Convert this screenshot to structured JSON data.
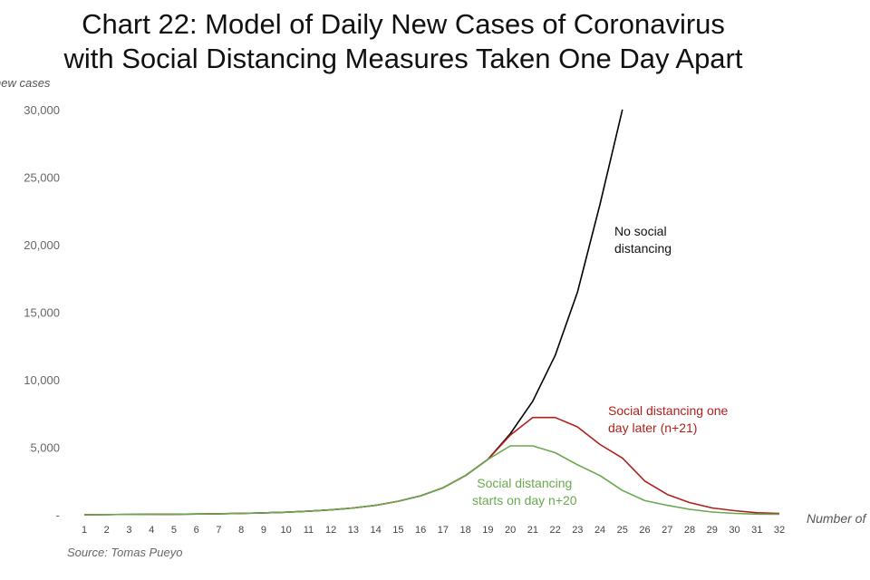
{
  "chart_data": {
    "type": "line",
    "title": [
      "Chart 22: Model of Daily New Cases of Coronavirus",
      "with Social Distancing Measures Taken One Day Apart"
    ],
    "ylabel": "new cases",
    "xlabel": "Number of",
    "source": "Source: Tomas Pueyo",
    "ylim": [
      0,
      30000
    ],
    "y_ticks": [
      {
        "value": 0,
        "label": "-"
      },
      {
        "value": 5000,
        "label": "5,000"
      },
      {
        "value": 10000,
        "label": "10,000"
      },
      {
        "value": 15000,
        "label": "15,000"
      },
      {
        "value": 20000,
        "label": "20,000"
      },
      {
        "value": 25000,
        "label": "25,000"
      },
      {
        "value": 30000,
        "label": "30,000"
      }
    ],
    "x": [
      1,
      2,
      3,
      4,
      5,
      6,
      7,
      8,
      9,
      10,
      11,
      12,
      13,
      14,
      15,
      16,
      17,
      18,
      19,
      20,
      21,
      22,
      23,
      24,
      25,
      26,
      27,
      28,
      29,
      30,
      31,
      32
    ],
    "series": [
      {
        "color": "#000000",
        "annotation": [
          "No social",
          "distancing"
        ],
        "x": [
          1,
          2,
          3,
          4,
          5,
          6,
          7,
          8,
          9,
          10,
          11,
          12,
          13,
          14,
          15,
          16,
          17,
          18,
          19,
          20,
          21,
          22,
          23,
          24,
          25
        ],
        "values": [
          10,
          15,
          20,
          30,
          40,
          55,
          75,
          100,
          140,
          190,
          260,
          360,
          500,
          700,
          1000,
          1400,
          2000,
          2900,
          4100,
          6000,
          8400,
          11800,
          16500,
          23000,
          30000
        ]
      },
      {
        "color": "#b0201b",
        "annotation": [
          "Social distancing one",
          "day later (n+21)"
        ],
        "x": [
          1,
          2,
          3,
          4,
          5,
          6,
          7,
          8,
          9,
          10,
          11,
          12,
          13,
          14,
          15,
          16,
          17,
          18,
          19,
          20,
          21,
          22,
          23,
          24,
          25,
          26,
          27,
          28,
          29,
          30,
          31,
          32
        ],
        "values": [
          10,
          15,
          20,
          30,
          40,
          55,
          75,
          100,
          140,
          190,
          260,
          360,
          500,
          700,
          1000,
          1400,
          2000,
          2900,
          4100,
          5900,
          7200,
          7200,
          6500,
          5200,
          4200,
          2500,
          1500,
          900,
          500,
          300,
          150,
          100
        ]
      },
      {
        "color": "#6aa84f",
        "annotation": [
          "Social distancing",
          "starts on day n+20"
        ],
        "x": [
          1,
          2,
          3,
          4,
          5,
          6,
          7,
          8,
          9,
          10,
          11,
          12,
          13,
          14,
          15,
          16,
          17,
          18,
          19,
          20,
          21,
          22,
          23,
          24,
          25,
          26,
          27,
          28,
          29,
          30,
          31,
          32
        ],
        "values": [
          10,
          15,
          20,
          30,
          40,
          55,
          75,
          100,
          140,
          190,
          260,
          360,
          500,
          700,
          1000,
          1400,
          2000,
          2900,
          4100,
          5100,
          5100,
          4600,
          3700,
          2900,
          1800,
          1050,
          700,
          400,
          200,
          100,
          50,
          40
        ]
      }
    ],
    "grid": false,
    "legend": "none"
  }
}
